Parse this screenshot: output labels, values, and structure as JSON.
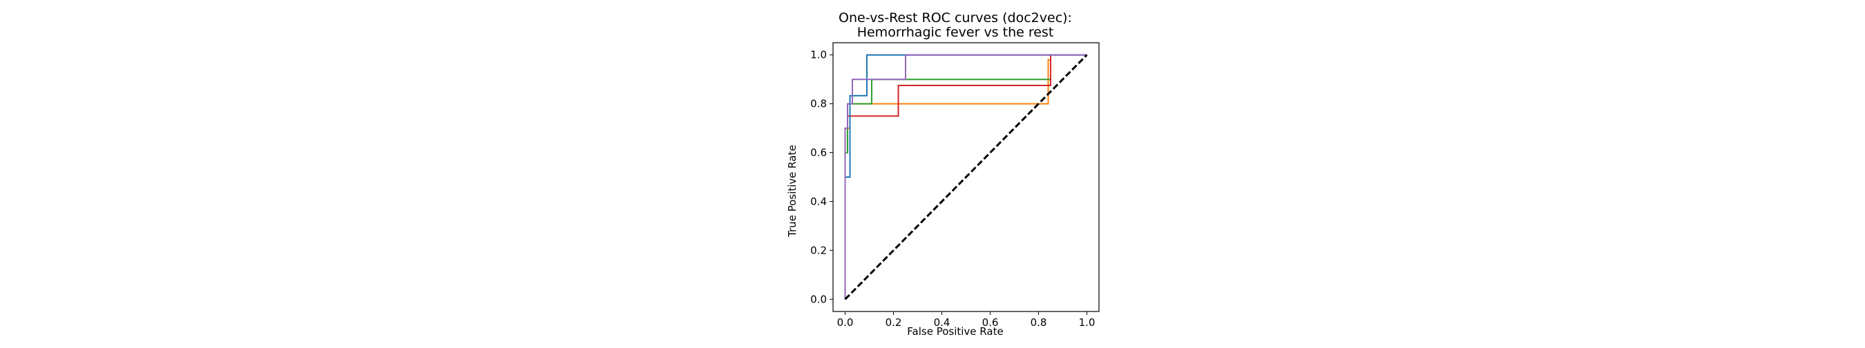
{
  "chart_data": {
    "type": "line",
    "title": "One-vs-Rest ROC curves (doc2vec):",
    "subtitle": "Hemorrhagic fever vs the rest",
    "xlabel": "False Positive Rate",
    "ylabel": "True Positive Rate",
    "xlim": [
      -0.05,
      1.05
    ],
    "ylim": [
      -0.05,
      1.05
    ],
    "x_ticks": [
      "0.0",
      "0.2",
      "0.4",
      "0.6",
      "0.8",
      "1.0"
    ],
    "y_ticks": [
      "0.0",
      "0.2",
      "0.4",
      "0.6",
      "0.8",
      "1.0"
    ],
    "grid": false,
    "legend": "none",
    "series": [
      {
        "color": "#ff7f0e",
        "style": "solid",
        "x": [
          0,
          0,
          0.01,
          0.01,
          0.02,
          0.02,
          0.84,
          0.84,
          0.85,
          0.85
        ],
        "y": [
          0,
          0.6,
          0.6,
          0.7,
          0.7,
          0.8,
          0.8,
          0.98,
          0.98,
          1.0
        ]
      },
      {
        "color": "#2ca02c",
        "style": "solid",
        "x": [
          0,
          0,
          0.01,
          0.01,
          0.05,
          0.05,
          0.11,
          0.11,
          0.85,
          0.85
        ],
        "y": [
          0,
          0.6,
          0.6,
          0.8,
          0.8,
          0.8,
          0.8,
          0.9,
          0.9,
          1.0
        ]
      },
      {
        "color": "#d62728",
        "style": "solid",
        "x": [
          0,
          0,
          0.01,
          0.01,
          0.22,
          0.22,
          0.85,
          0.85
        ],
        "y": [
          0,
          0.7,
          0.7,
          0.75,
          0.75,
          0.875,
          0.875,
          1.0
        ]
      },
      {
        "color": "#1f77b4",
        "style": "solid",
        "x": [
          0,
          0,
          0.02,
          0.02,
          0.05,
          0.05,
          0.09,
          0.09,
          1.0
        ],
        "y": [
          0,
          0.5,
          0.5,
          0.833,
          0.833,
          0.833,
          0.833,
          1.0,
          1.0
        ]
      },
      {
        "color": "#9467bd",
        "style": "solid",
        "x": [
          0,
          0,
          0.01,
          0.01,
          0.03,
          0.03,
          0.25,
          0.25,
          1.0
        ],
        "y": [
          0,
          0.7,
          0.7,
          0.8,
          0.8,
          0.9,
          0.9,
          1.0,
          1.0
        ]
      },
      {
        "color": "#000000",
        "style": "dashed",
        "x": [
          0,
          1
        ],
        "y": [
          0,
          1
        ]
      }
    ]
  }
}
